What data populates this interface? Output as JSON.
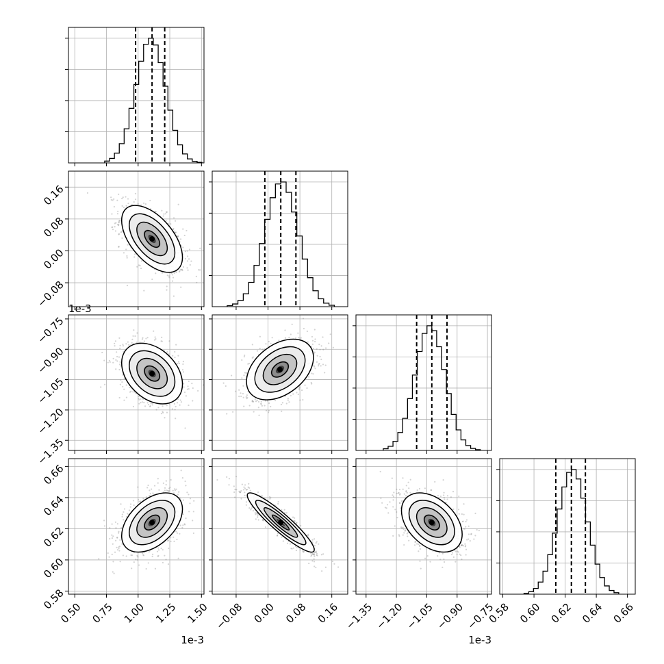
{
  "chart_data": {
    "type": "corner",
    "n_params": 4,
    "params": [
      {
        "index": 0,
        "range": [
          0.45,
          1.52
        ],
        "ticks": [
          0.5,
          0.75,
          1.0,
          1.25,
          1.5
        ],
        "tick_labels": [
          "0.50",
          "0.75",
          "1.00",
          "1.25",
          "1.50"
        ],
        "offset_text": "1e-3",
        "quantiles": [
          0.98,
          1.11,
          1.21
        ],
        "peak": 1.12,
        "sigma": 0.12,
        "skew": -0.7
      },
      {
        "index": 1,
        "range": [
          -0.14,
          0.2
        ],
        "ticks": [
          -0.08,
          0.0,
          0.08,
          0.16
        ],
        "tick_labels": [
          "−0.08",
          "0.00",
          "0.08",
          "0.16"
        ],
        "offset_text": "",
        "quantiles": [
          -0.008,
          0.032,
          0.07
        ],
        "peak": 0.032,
        "sigma": 0.042,
        "skew": 0.2
      },
      {
        "index": 2,
        "range": [
          -1.4,
          -0.73
        ],
        "ticks": [
          -1.35,
          -1.2,
          -1.05,
          -0.9,
          -0.75
        ],
        "tick_labels": [
          "−1.35",
          "−1.20",
          "−1.05",
          "−0.90",
          "−0.75"
        ],
        "offset_text": "1e-3",
        "quantiles": [
          -1.1,
          -1.025,
          -0.95
        ],
        "peak": -1.025,
        "sigma": 0.075,
        "skew": -0.5
      },
      {
        "index": 3,
        "range": [
          0.578,
          0.665
        ],
        "ticks": [
          0.58,
          0.6,
          0.62,
          0.64,
          0.66
        ],
        "tick_labels": [
          "0.58",
          "0.60",
          "0.62",
          "0.64",
          "0.66"
        ],
        "offset_text": "",
        "quantiles": [
          0.614,
          0.624,
          0.633
        ],
        "peak": 0.624,
        "sigma": 0.0095,
        "skew": 0.3
      }
    ],
    "pairs": [
      {
        "x": 0,
        "y": 1,
        "center": [
          1.11,
          0.03
        ],
        "correlation": -0.55
      },
      {
        "x": 0,
        "y": 2,
        "center": [
          1.11,
          -1.02
        ],
        "correlation": -0.35
      },
      {
        "x": 1,
        "y": 2,
        "center": [
          0.03,
          -1.0
        ],
        "correlation": 0.4
      },
      {
        "x": 0,
        "y": 3,
        "center": [
          1.11,
          0.624
        ],
        "correlation": 0.45
      },
      {
        "x": 1,
        "y": 3,
        "center": [
          0.032,
          0.624
        ],
        "correlation": -0.92
      },
      {
        "x": 2,
        "y": 3,
        "center": [
          -1.025,
          0.624
        ],
        "correlation": -0.4
      }
    ],
    "grid": true,
    "colors": {
      "data": "#000000",
      "grid": "#b0b0b0",
      "points": "#808080"
    }
  }
}
